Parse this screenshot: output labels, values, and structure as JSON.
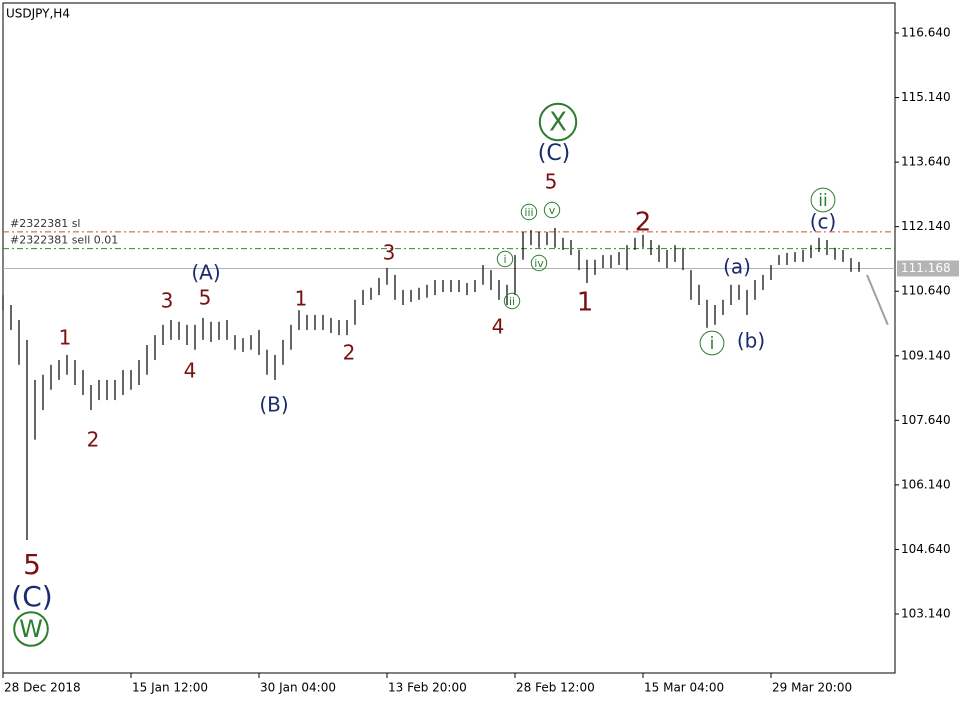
{
  "chart_data": {
    "type": "ohlc",
    "title": "USDJPY,H4",
    "high": [
      110.55,
      110.32,
      109.97,
      109.51,
      108.58,
      108.7,
      108.93,
      109.04,
      109.16,
      109.04,
      108.81,
      108.46,
      108.58,
      108.58,
      108.58,
      108.81,
      108.81,
      109.04,
      109.39,
      109.62,
      109.86,
      109.97,
      109.93,
      109.86,
      109.86,
      110.02,
      109.93,
      109.93,
      109.97,
      109.62,
      109.55,
      109.62,
      109.74,
      109.28,
      109.16,
      109.51,
      109.86,
      110.2,
      110.09,
      110.09,
      110.09,
      110.02,
      109.97,
      109.97,
      110.44,
      110.67,
      110.72,
      110.95,
      111.18,
      111.02,
      110.67,
      110.67,
      110.72,
      110.79,
      110.9,
      110.9,
      110.9,
      110.9,
      110.83,
      110.9,
      111.25,
      111.13,
      110.9,
      110.79,
      111.48,
      112.02,
      112.06,
      112.02,
      112.02,
      112.11,
      111.88,
      111.83,
      111.6,
      111.37,
      111.37,
      111.48,
      111.48,
      111.55,
      111.71,
      111.88,
      111.95,
      111.83,
      111.71,
      111.6,
      111.71,
      111.65,
      111.13,
      110.79,
      110.44,
      110.32,
      110.44,
      110.79,
      110.79,
      110.67,
      110.9,
      111.02,
      111.25,
      111.48,
      111.53,
      111.55,
      111.6,
      111.71,
      111.88,
      111.83,
      111.65,
      111.6,
      111.41,
      111.32
    ],
    "low": [
      110.2,
      109.74,
      108.93,
      104.86,
      107.19,
      107.88,
      108.35,
      108.58,
      108.7,
      108.46,
      108.23,
      107.88,
      108.11,
      108.11,
      108.11,
      108.23,
      108.35,
      108.46,
      108.7,
      109.04,
      109.39,
      109.51,
      109.51,
      109.39,
      109.28,
      109.51,
      109.46,
      109.51,
      109.51,
      109.28,
      109.23,
      109.28,
      109.16,
      108.7,
      108.58,
      108.93,
      109.28,
      109.74,
      109.74,
      109.74,
      109.74,
      109.67,
      109.62,
      109.62,
      109.86,
      110.32,
      110.44,
      110.55,
      110.79,
      110.44,
      110.32,
      110.39,
      110.44,
      110.49,
      110.55,
      110.62,
      110.62,
      110.62,
      110.55,
      110.62,
      110.79,
      110.67,
      110.44,
      110.32,
      110.55,
      111.37,
      111.71,
      111.65,
      111.71,
      111.65,
      111.6,
      111.48,
      111.13,
      110.83,
      111.02,
      111.18,
      111.18,
      111.25,
      111.13,
      111.6,
      111.65,
      111.48,
      111.32,
      111.18,
      111.32,
      111.13,
      110.44,
      110.32,
      109.79,
      109.86,
      110.09,
      110.32,
      110.44,
      110.09,
      110.44,
      110.67,
      110.9,
      111.25,
      111.25,
      111.32,
      111.32,
      111.41,
      111.55,
      111.48,
      111.37,
      111.32,
      111.09,
      111.09
    ],
    "xlim": [
      0,
      111.5
    ],
    "xticks": [
      {
        "value": 0,
        "label": "28 Dec 2018"
      },
      {
        "value": 16,
        "label": "15 Jan 12:00"
      },
      {
        "value": 32,
        "label": "30 Jan 04:00"
      },
      {
        "value": 48,
        "label": "13 Feb 20:00"
      },
      {
        "value": 64,
        "label": "28 Feb 12:00"
      },
      {
        "value": 80,
        "label": "15 Mar 04:00"
      },
      {
        "value": 96,
        "label": "29 Mar 20:00"
      }
    ],
    "ylim": [
      101.769,
      117.337
    ],
    "yticks": [
      {
        "value": 103.14,
        "label": "103.140"
      },
      {
        "value": 104.64,
        "label": "104.640"
      },
      {
        "value": 106.14,
        "label": "106.140"
      },
      {
        "value": 107.64,
        "label": "107.640"
      },
      {
        "value": 109.14,
        "label": "109.140"
      },
      {
        "value": 110.64,
        "label": "110.640"
      },
      {
        "value": 112.14,
        "label": "112.140"
      },
      {
        "value": 113.64,
        "label": "113.640"
      },
      {
        "value": 115.14,
        "label": "115.140"
      },
      {
        "value": 116.64,
        "label": "116.640"
      }
    ],
    "bar_color": "#000000",
    "levels": [
      {
        "name": "#2322381 sl",
        "value": 112.02,
        "color": "#c8502d"
      },
      {
        "name": "#2322381 sell 0.01",
        "value": 111.63,
        "color": "#2e8b2e"
      },
      {
        "name": "111.168",
        "value": 111.168,
        "color": "#b4b4b4"
      }
    ],
    "forecast": {
      "x": [
        108,
        110.6
      ],
      "y": [
        111.02,
        109.86
      ],
      "color": "#a0a0a0"
    },
    "annotations": [
      {
        "text": "5",
        "color": "#7a1010"
      },
      {
        "text": "(C)",
        "color": "#1c2a6e"
      },
      {
        "text": "W",
        "color": "#2e7d2e",
        "circled": true
      },
      {
        "text": "1",
        "color": "#7a1010"
      },
      {
        "text": "2",
        "color": "#7a1010"
      },
      {
        "text": "3",
        "color": "#7a1010"
      },
      {
        "text": "4",
        "color": "#7a1010"
      },
      {
        "text": "5",
        "color": "#7a1010"
      },
      {
        "text": "(A)",
        "color": "#1c2a6e"
      },
      {
        "text": "(B)",
        "color": "#1c2a6e"
      },
      {
        "text": "1",
        "color": "#7a1010"
      },
      {
        "text": "2",
        "color": "#7a1010"
      },
      {
        "text": "3",
        "color": "#7a1010"
      },
      {
        "text": "4",
        "color": "#7a1010"
      },
      {
        "text": "i",
        "color": "#2e7d2e",
        "circled": true
      },
      {
        "text": "ii",
        "color": "#2e7d2e",
        "circled": true
      },
      {
        "text": "iii",
        "color": "#2e7d2e",
        "circled": true
      },
      {
        "text": "iv",
        "color": "#2e7d2e",
        "circled": true
      },
      {
        "text": "v",
        "color": "#2e7d2e",
        "circled": true
      },
      {
        "text": "5",
        "color": "#7a1010"
      },
      {
        "text": "(C)",
        "color": "#1c2a6e"
      },
      {
        "text": "X",
        "color": "#2e7d2e",
        "circled": true
      },
      {
        "text": "1",
        "color": "#7a1010"
      },
      {
        "text": "2",
        "color": "#7a1010"
      },
      {
        "text": "(a)",
        "color": "#1c2a6e"
      },
      {
        "text": "(b)",
        "color": "#1c2a6e"
      },
      {
        "text": "i",
        "color": "#2e7d2e",
        "circled": true
      },
      {
        "text": "ii",
        "color": "#2e7d2e",
        "circled": true
      },
      {
        "text": "(c)",
        "color": "#1c2a6e"
      }
    ]
  }
}
